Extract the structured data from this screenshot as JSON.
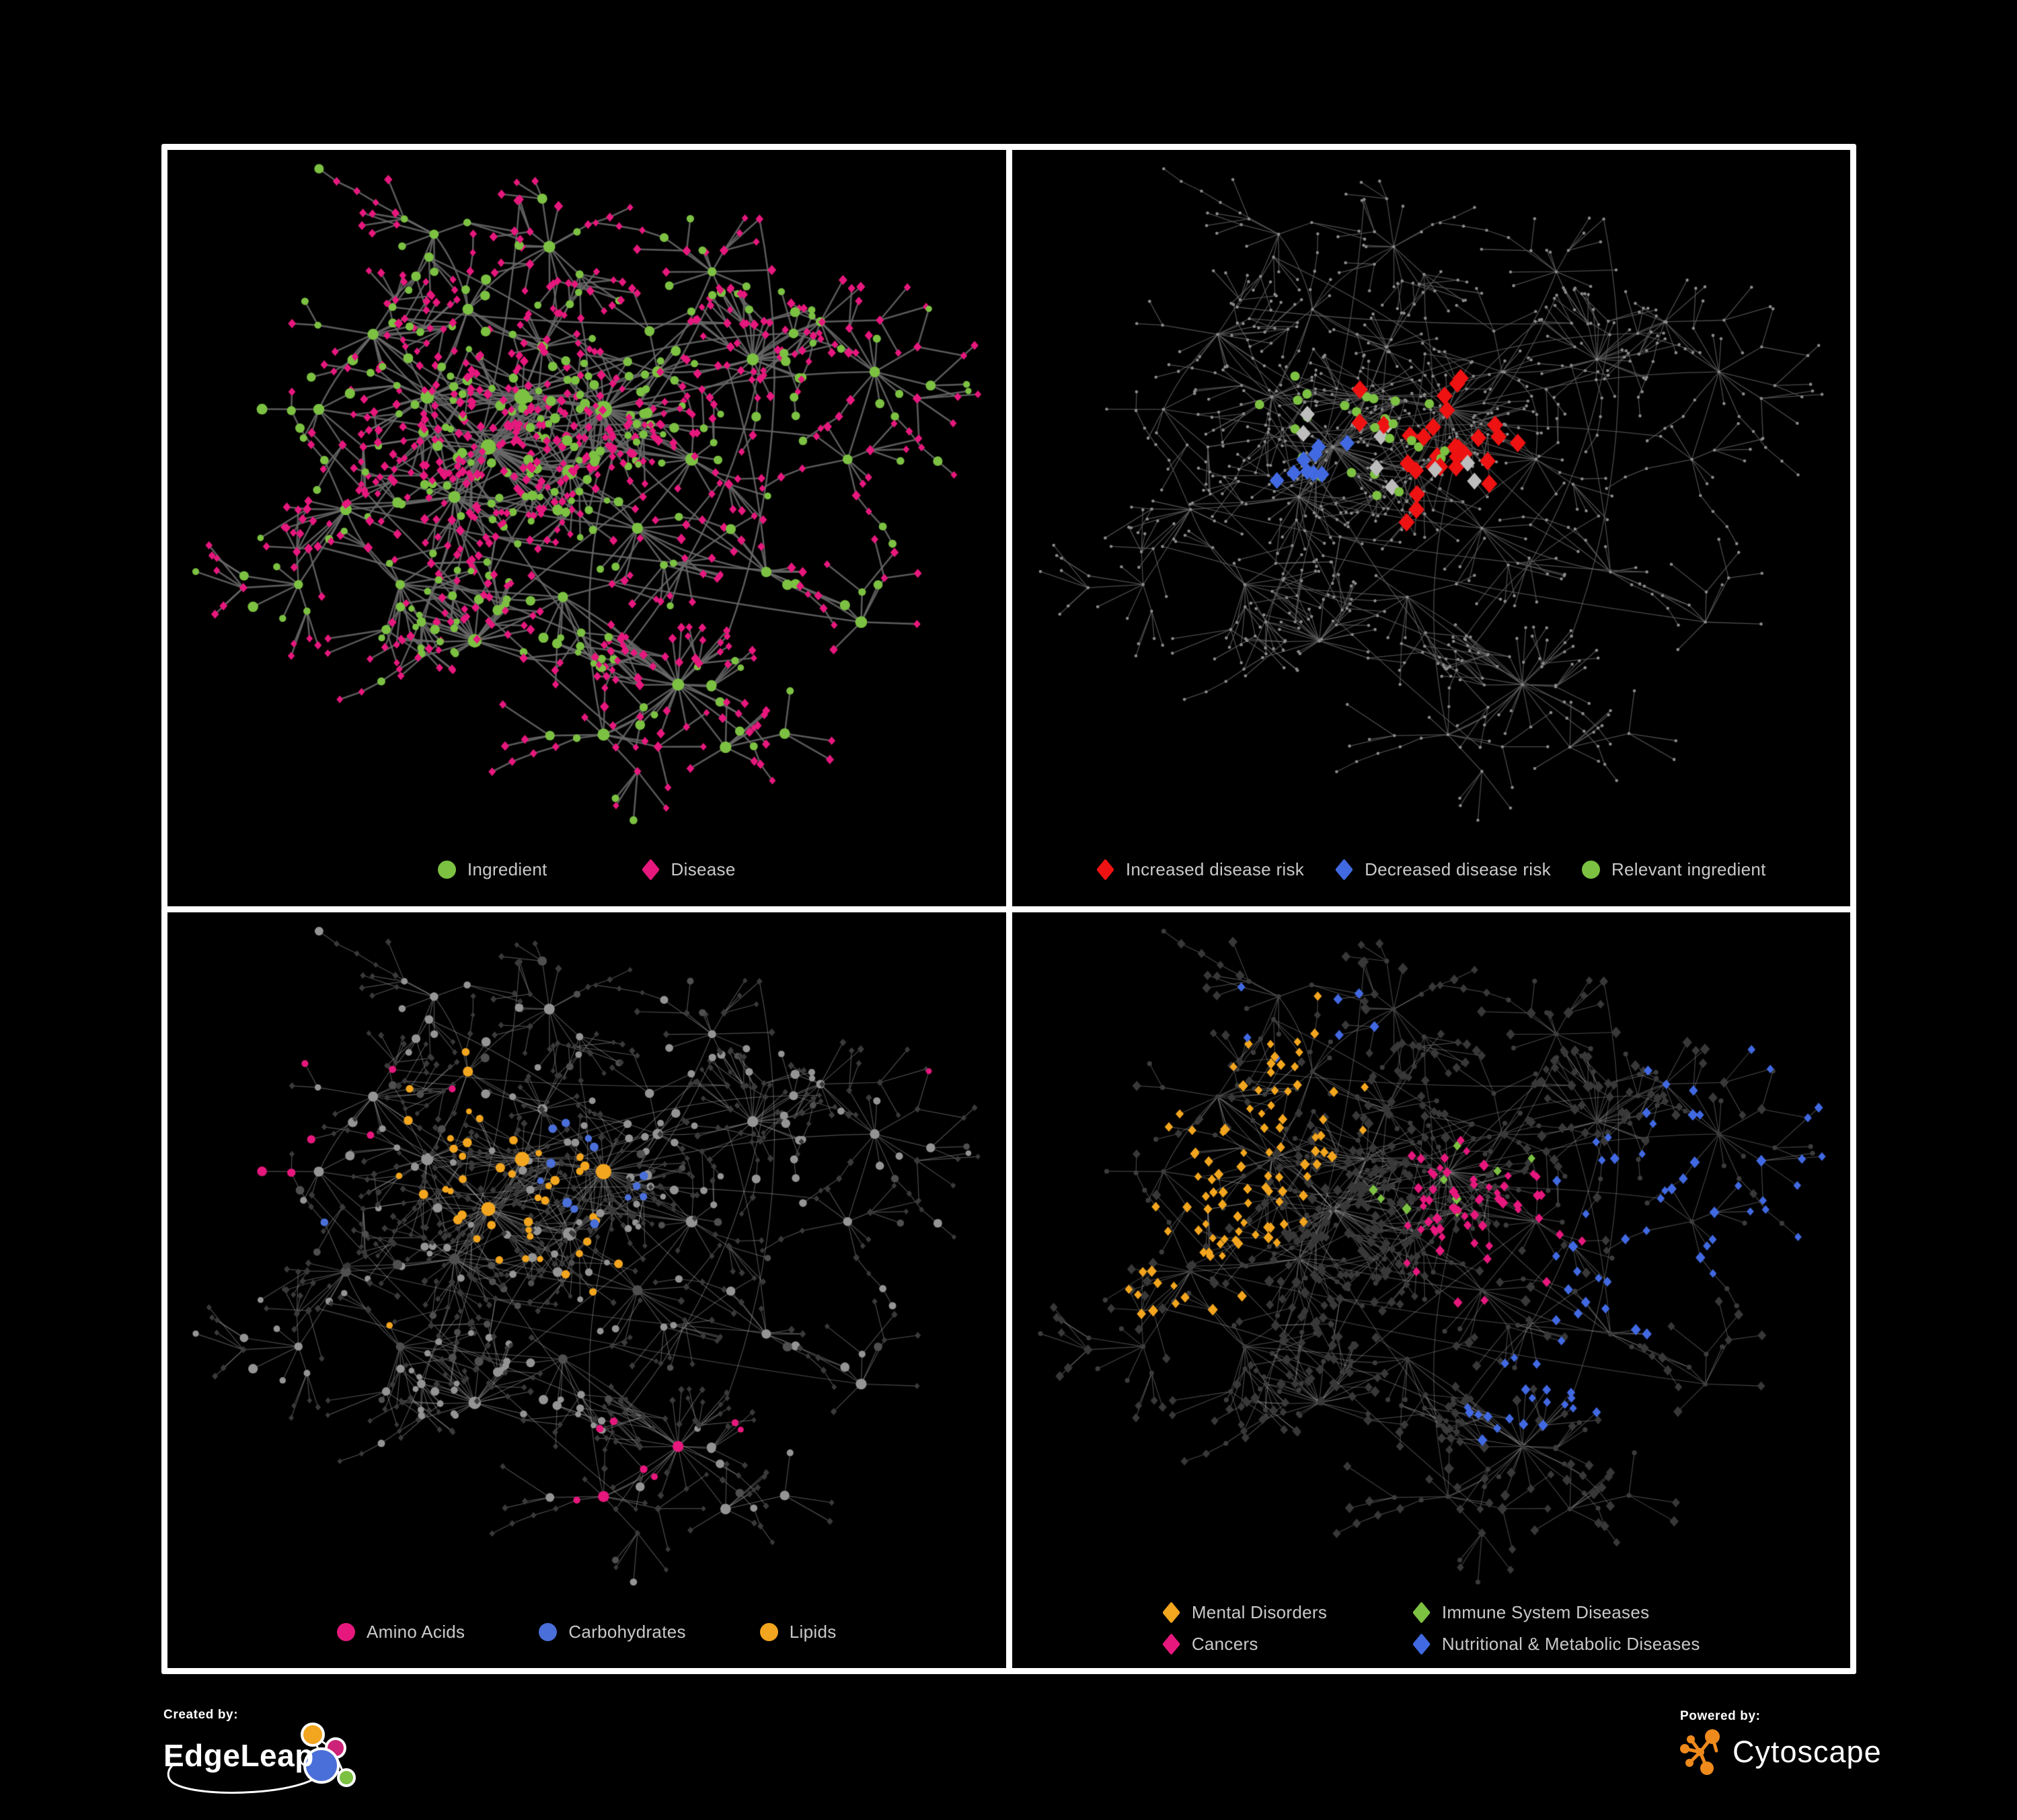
{
  "colors": {
    "ingredient_green": "#7cc142",
    "disease_pink": "#e6187d",
    "risk_red": "#ee1212",
    "risk_blue": "#4169e1",
    "neutral_gray": "#bdbdbd",
    "amino_pink": "#e6187d",
    "carb_blue": "#4a6fd8",
    "lipid_amber": "#f2a51e",
    "mental_amber": "#f2a51e",
    "immune_green": "#7cc142",
    "cancer_pink": "#e6187d",
    "nutri_blue": "#4169e1",
    "legend_text": "#c9c9c9",
    "panel_border": "#ffffff",
    "background": "#000000",
    "edgeleap_orange": "#f2a51e",
    "edgeleap_magenta": "#cc2277",
    "edgeleap_blue": "#4a6fd8",
    "edgeleap_green": "#7cc142",
    "cytoscape_orange": "#ef8a1c"
  },
  "network": {
    "seed": 1337,
    "extraHubLinks": 9,
    "crossLinks": 26,
    "hubs": [
      [
        0.33,
        0.42,
        3
      ],
      [
        0.28,
        0.5,
        2
      ],
      [
        0.38,
        0.34,
        2
      ],
      [
        0.45,
        0.46,
        2
      ],
      [
        0.24,
        0.34,
        2
      ],
      [
        0.5,
        0.36,
        3
      ],
      [
        0.41,
        0.26,
        1
      ],
      [
        0.3,
        0.2,
        1
      ],
      [
        0.16,
        0.24,
        1
      ],
      [
        0.08,
        0.36,
        1
      ],
      [
        0.12,
        0.52,
        1
      ],
      [
        0.2,
        0.64,
        1
      ],
      [
        0.31,
        0.73,
        2
      ],
      [
        0.44,
        0.66,
        1
      ],
      [
        0.61,
        0.8,
        2
      ],
      [
        0.5,
        0.88,
        1
      ],
      [
        0.55,
        0.55,
        1
      ],
      [
        0.63,
        0.44,
        1
      ],
      [
        0.58,
        0.3,
        1
      ],
      [
        0.66,
        0.14,
        1
      ],
      [
        0.72,
        0.28,
        2
      ],
      [
        0.82,
        0.22,
        1
      ],
      [
        0.9,
        0.3,
        1
      ],
      [
        0.86,
        0.44,
        1
      ],
      [
        0.74,
        0.62,
        1
      ],
      [
        0.88,
        0.7,
        1
      ],
      [
        0.42,
        0.1,
        1
      ],
      [
        0.25,
        0.08,
        1
      ],
      [
        0.05,
        0.64,
        1
      ],
      [
        0.68,
        0.9,
        1
      ]
    ]
  },
  "panels": [
    {
      "id": "ingredient-disease",
      "seed": 11,
      "style": {
        "mode": "full",
        "edge": {
          "color": "#6a6a6a",
          "width": 2.6,
          "alpha": 0.85
        },
        "circleColor": "#7cc142",
        "diamondColor": "#e6187d"
      },
      "legend": [
        {
          "shape": "circle",
          "color": "ingredient_green",
          "label": "Ingredient"
        },
        {
          "shape": "diamond",
          "color": "disease_pink",
          "label": "Disease"
        }
      ],
      "highlights": []
    },
    {
      "id": "disease-risk",
      "seed": 22,
      "style": {
        "mode": "dots",
        "edge": {
          "color": "#5e5e5e",
          "width": 1.3,
          "alpha": 0.8
        },
        "dotColor": "#8a8a8a"
      },
      "legend": [
        {
          "shape": "diamond",
          "color": "risk_red",
          "label": "Increased disease risk"
        },
        {
          "shape": "diamond",
          "color": "risk_blue",
          "label": "Decreased disease risk"
        },
        {
          "shape": "circle",
          "color": "ingredient_green",
          "label": "Relevant ingredient"
        }
      ],
      "highlights": [
        {
          "name": "increased-risk",
          "shape": "diamond",
          "targets": "diamond",
          "color": "#ee1212",
          "size": 12,
          "count": 30,
          "sigma": 0.13,
          "anchors": [
            [
              0.42,
              0.38
            ],
            [
              0.52,
              0.48
            ],
            [
              0.6,
              0.4
            ],
            [
              0.33,
              0.3
            ],
            [
              0.63,
              0.32
            ],
            [
              0.76,
              0.74
            ],
            [
              0.45,
              0.55
            ]
          ]
        },
        {
          "name": "decreased-risk",
          "shape": "diamond",
          "targets": "diamond",
          "color": "#4169e1",
          "size": 11,
          "count": 9,
          "sigma": 0.09,
          "anchors": [
            [
              0.36,
              0.42
            ],
            [
              0.33,
              0.48
            ],
            [
              0.9,
              0.36
            ]
          ]
        },
        {
          "name": "unlabeled-neutral",
          "shape": "diamond",
          "targets": "diamond",
          "color": "#bdbdbd",
          "size": 11,
          "count": 9,
          "sigma": 0.1,
          "anchors": [
            [
              0.34,
              0.38
            ],
            [
              0.5,
              0.45
            ],
            [
              0.56,
              0.52
            ],
            [
              0.27,
              0.31
            ]
          ]
        },
        {
          "name": "relevant-ingredient",
          "shape": "circle",
          "targets": "circle",
          "color": "#7cc142",
          "size": 7,
          "count": 27,
          "sigma": 0.12,
          "anchors": [
            [
              0.34,
              0.4
            ],
            [
              0.45,
              0.5
            ],
            [
              0.6,
              0.63
            ],
            [
              0.3,
              0.33
            ],
            [
              0.5,
              0.36
            ]
          ]
        }
      ]
    },
    {
      "id": "nutrient-classes",
      "seed": 33,
      "style": {
        "mode": "circles",
        "edge": {
          "color": "#9a9a9a",
          "width": 1.2,
          "alpha": 0.5
        },
        "circleColor": "#949494",
        "circleColorAlt": "#4f4f4f",
        "diamondColor": "#3a3a3a"
      },
      "legend": [
        {
          "shape": "circle",
          "color": "amino_pink",
          "label": "Amino Acids"
        },
        {
          "shape": "circle",
          "color": "carb_blue",
          "label": "Carbohydrates"
        },
        {
          "shape": "circle",
          "color": "lipid_amber",
          "label": "Lipids"
        }
      ],
      "highlights": [
        {
          "name": "lipids",
          "shape": "circle",
          "targets": "circle",
          "color": "#f2a51e",
          "count": 48,
          "sigma": 0.08,
          "anchors": [
            [
              0.5,
              0.37
            ],
            [
              0.42,
              0.47
            ],
            [
              0.37,
              0.2
            ],
            [
              0.3,
              0.33
            ],
            [
              0.56,
              0.56
            ],
            [
              0.25,
              0.6
            ]
          ]
        },
        {
          "name": "carbohydrates",
          "shape": "circle",
          "targets": "circle",
          "color": "#4a6fd8",
          "count": 14,
          "sigma": 0.06,
          "anchors": [
            [
              0.48,
              0.35
            ],
            [
              0.52,
              0.4
            ],
            [
              0.14,
              0.45
            ],
            [
              0.78,
              0.58
            ]
          ]
        },
        {
          "name": "amino-acids",
          "shape": "circle",
          "targets": "circle",
          "color": "#e6187d",
          "count": 17,
          "sigma": 0.11,
          "anchors": [
            [
              0.1,
              0.48
            ],
            [
              0.6,
              0.73
            ],
            [
              0.74,
              0.77
            ],
            [
              0.3,
              0.25
            ],
            [
              0.94,
              0.23
            ],
            [
              0.05,
              0.22
            ],
            [
              0.45,
              0.9
            ]
          ]
        }
      ]
    },
    {
      "id": "disease-classes",
      "seed": 44,
      "style": {
        "mode": "diamonds",
        "edge": {
          "color": "#a0a0a0",
          "width": 1.1,
          "alpha": 0.45
        },
        "circleColor": "#3c3c3c",
        "diamondColor": "#383838"
      },
      "legend": [
        {
          "shape": "diamond",
          "color": "mental_amber",
          "label": "Mental Disorders"
        },
        {
          "shape": "diamond",
          "color": "immune_green",
          "label": "Immune System Diseases"
        },
        {
          "shape": "diamond",
          "color": "cancer_pink",
          "label": "Cancers"
        },
        {
          "shape": "diamond",
          "color": "nutri_blue",
          "label": "Nutritional & Metabolic Diseases"
        }
      ],
      "highlights": [
        {
          "name": "mental-disorders",
          "shape": "diamond",
          "targets": "diamond",
          "color": "#f2a51e",
          "count": 100,
          "sigma": 0.085,
          "anchors": [
            [
              0.24,
              0.42
            ],
            [
              0.32,
              0.3
            ],
            [
              0.18,
              0.52
            ],
            [
              0.35,
              0.12
            ],
            [
              0.13,
              0.36
            ]
          ]
        },
        {
          "name": "cancers",
          "shape": "diamond",
          "targets": "diamond",
          "color": "#e6187d",
          "count": 60,
          "sigma": 0.08,
          "anchors": [
            [
              0.58,
              0.42
            ],
            [
              0.66,
              0.48
            ],
            [
              0.5,
              0.55
            ],
            [
              0.95,
              0.2
            ],
            [
              0.52,
              0.34
            ]
          ]
        },
        {
          "name": "nutritional-metabolic",
          "shape": "diamond",
          "targets": "diamond",
          "color": "#4169e1",
          "count": 80,
          "sigma": 0.09,
          "anchors": [
            [
              0.86,
              0.47
            ],
            [
              0.88,
              0.13
            ],
            [
              0.76,
              0.39
            ],
            [
              0.35,
              0.13
            ],
            [
              0.64,
              0.75
            ],
            [
              0.95,
              0.32
            ],
            [
              0.7,
              0.6
            ]
          ]
        },
        {
          "name": "immune-system",
          "shape": "diamond",
          "targets": "diamond",
          "color": "#7cc142",
          "count": 9,
          "sigma": 0.15,
          "anchors": [
            [
              0.5,
              0.35
            ],
            [
              0.45,
              0.5
            ],
            [
              0.6,
              0.28
            ]
          ]
        }
      ]
    }
  ],
  "footer": {
    "created_by": "Created by:",
    "brand": "EdgeLeap",
    "powered_by": "Powered by:",
    "engine": "Cytoscape"
  }
}
